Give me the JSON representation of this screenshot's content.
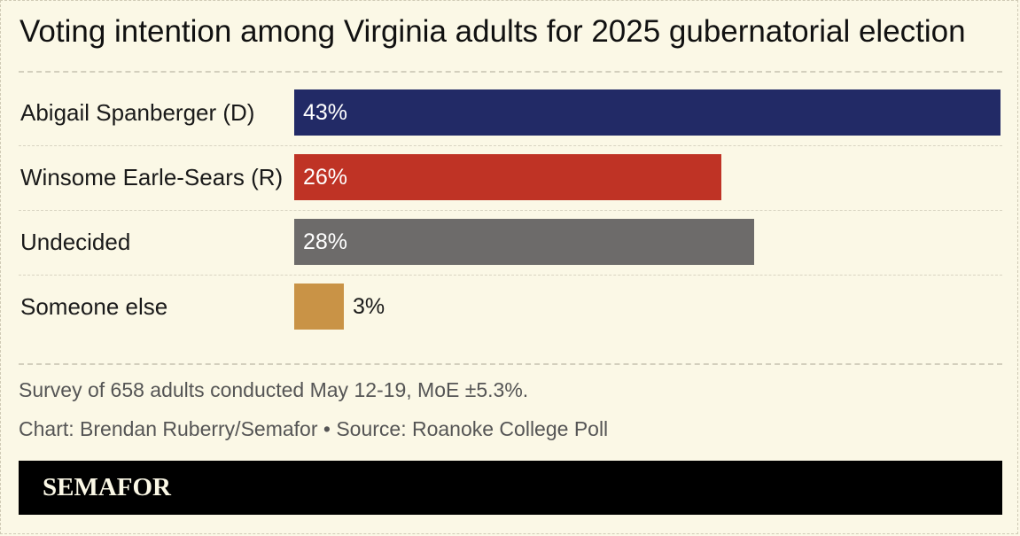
{
  "chart_data": {
    "type": "bar",
    "orientation": "horizontal",
    "title": "Voting intention among Virginia adults for 2025 gubernatorial election",
    "categories": [
      "Abigail Spanberger (D)",
      "Winsome Earle-Sears (R)",
      "Undecided",
      "Someone else"
    ],
    "values": [
      43,
      26,
      28,
      3
    ],
    "value_labels": [
      "43%",
      "26%",
      "28%",
      "3%"
    ],
    "colors": [
      "#222a66",
      "#bf3325",
      "#6d6b6a",
      "#c99346"
    ],
    "unit": "%",
    "xlim": [
      0,
      43
    ],
    "grid": false,
    "legend": "none"
  },
  "notes": {
    "survey": "Survey of 658 adults conducted May 12-19, MoE ±5.3%.",
    "credit": "Chart: Brendan Ruberry/Semafor • Source: Roanoke College Poll"
  },
  "brand": {
    "logo_text": "SEMAFOR",
    "background": "#fbf8e6",
    "footer_color": "#000000"
  }
}
